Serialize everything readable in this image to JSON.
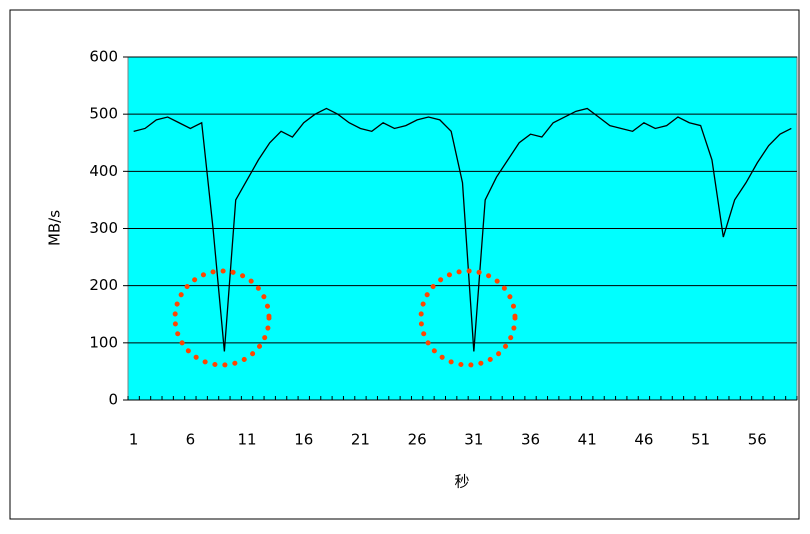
{
  "chart_data": {
    "type": "line",
    "x_label": "秒",
    "y_label": "MB/s",
    "categories": [
      1,
      null,
      null,
      null,
      null,
      6,
      null,
      null,
      null,
      null,
      11,
      null,
      null,
      null,
      null,
      16,
      null,
      null,
      null,
      null,
      21,
      null,
      null,
      null,
      null,
      26,
      null,
      null,
      null,
      null,
      31,
      null,
      null,
      null,
      null,
      36,
      null,
      null,
      null,
      null,
      41,
      null,
      null,
      null,
      null,
      46,
      null,
      null,
      null,
      null,
      51,
      null,
      null,
      null,
      null,
      56,
      null,
      null,
      null
    ],
    "series": [
      {
        "color": "#000000",
        "values": [
          470,
          475,
          490,
          495,
          485,
          475,
          485,
          300,
          85,
          350,
          385,
          420,
          450,
          470,
          460,
          485,
          500,
          510,
          500,
          485,
          475,
          470,
          485,
          475,
          480,
          490,
          495,
          490,
          470,
          380,
          85,
          350,
          390,
          420,
          450,
          465,
          460,
          485,
          495,
          505,
          510,
          495,
          480,
          475,
          470,
          485,
          475,
          480,
          495,
          485,
          480,
          420,
          285,
          350,
          380,
          415,
          445,
          465,
          475
        ]
      }
    ],
    "ylim": [
      0,
      600
    ],
    "yticks": [
      0,
      100,
      200,
      300,
      400,
      500,
      600
    ],
    "grid": true
  }
}
